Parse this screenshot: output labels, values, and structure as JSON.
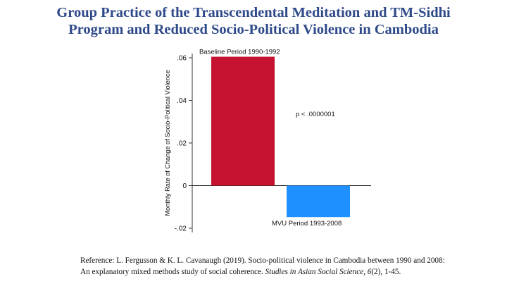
{
  "title": {
    "line1": "Group Practice of the Transcendental Meditation and TM-Sidhi",
    "line2": "Program and Reduced Socio-Political Violence in Cambodia"
  },
  "chart_data": {
    "type": "bar",
    "categories": [
      "Baseline Period 1990-1992",
      "MVU Period 1993-2008"
    ],
    "values": [
      0.0605,
      -0.0148
    ],
    "colors": [
      "#c41230",
      "#1e90ff"
    ],
    "ylabel": "Monthly Rate of Change of Socio-Political Violence",
    "xlabel": "",
    "ylim": [
      -0.022,
      0.062
    ],
    "yticks": [
      -0.02,
      0,
      0.02,
      0.04,
      0.06
    ],
    "ytick_labels": [
      "-.02",
      "0",
      ".02",
      ".04",
      ".06"
    ],
    "annotation": "p <  .0000001",
    "grid": false,
    "legend": "none"
  },
  "reference": {
    "prefix": "Reference: L. Fergusson & K. L. Cavanaugh (2019). Socio-political violence in Cambodia between 1990 and 2008:",
    "line2_start": "An explanatory mixed methods study of social coherence. ",
    "journal": "Studies in Asian Social Science, 6",
    "issue": "(2), 1-45."
  }
}
